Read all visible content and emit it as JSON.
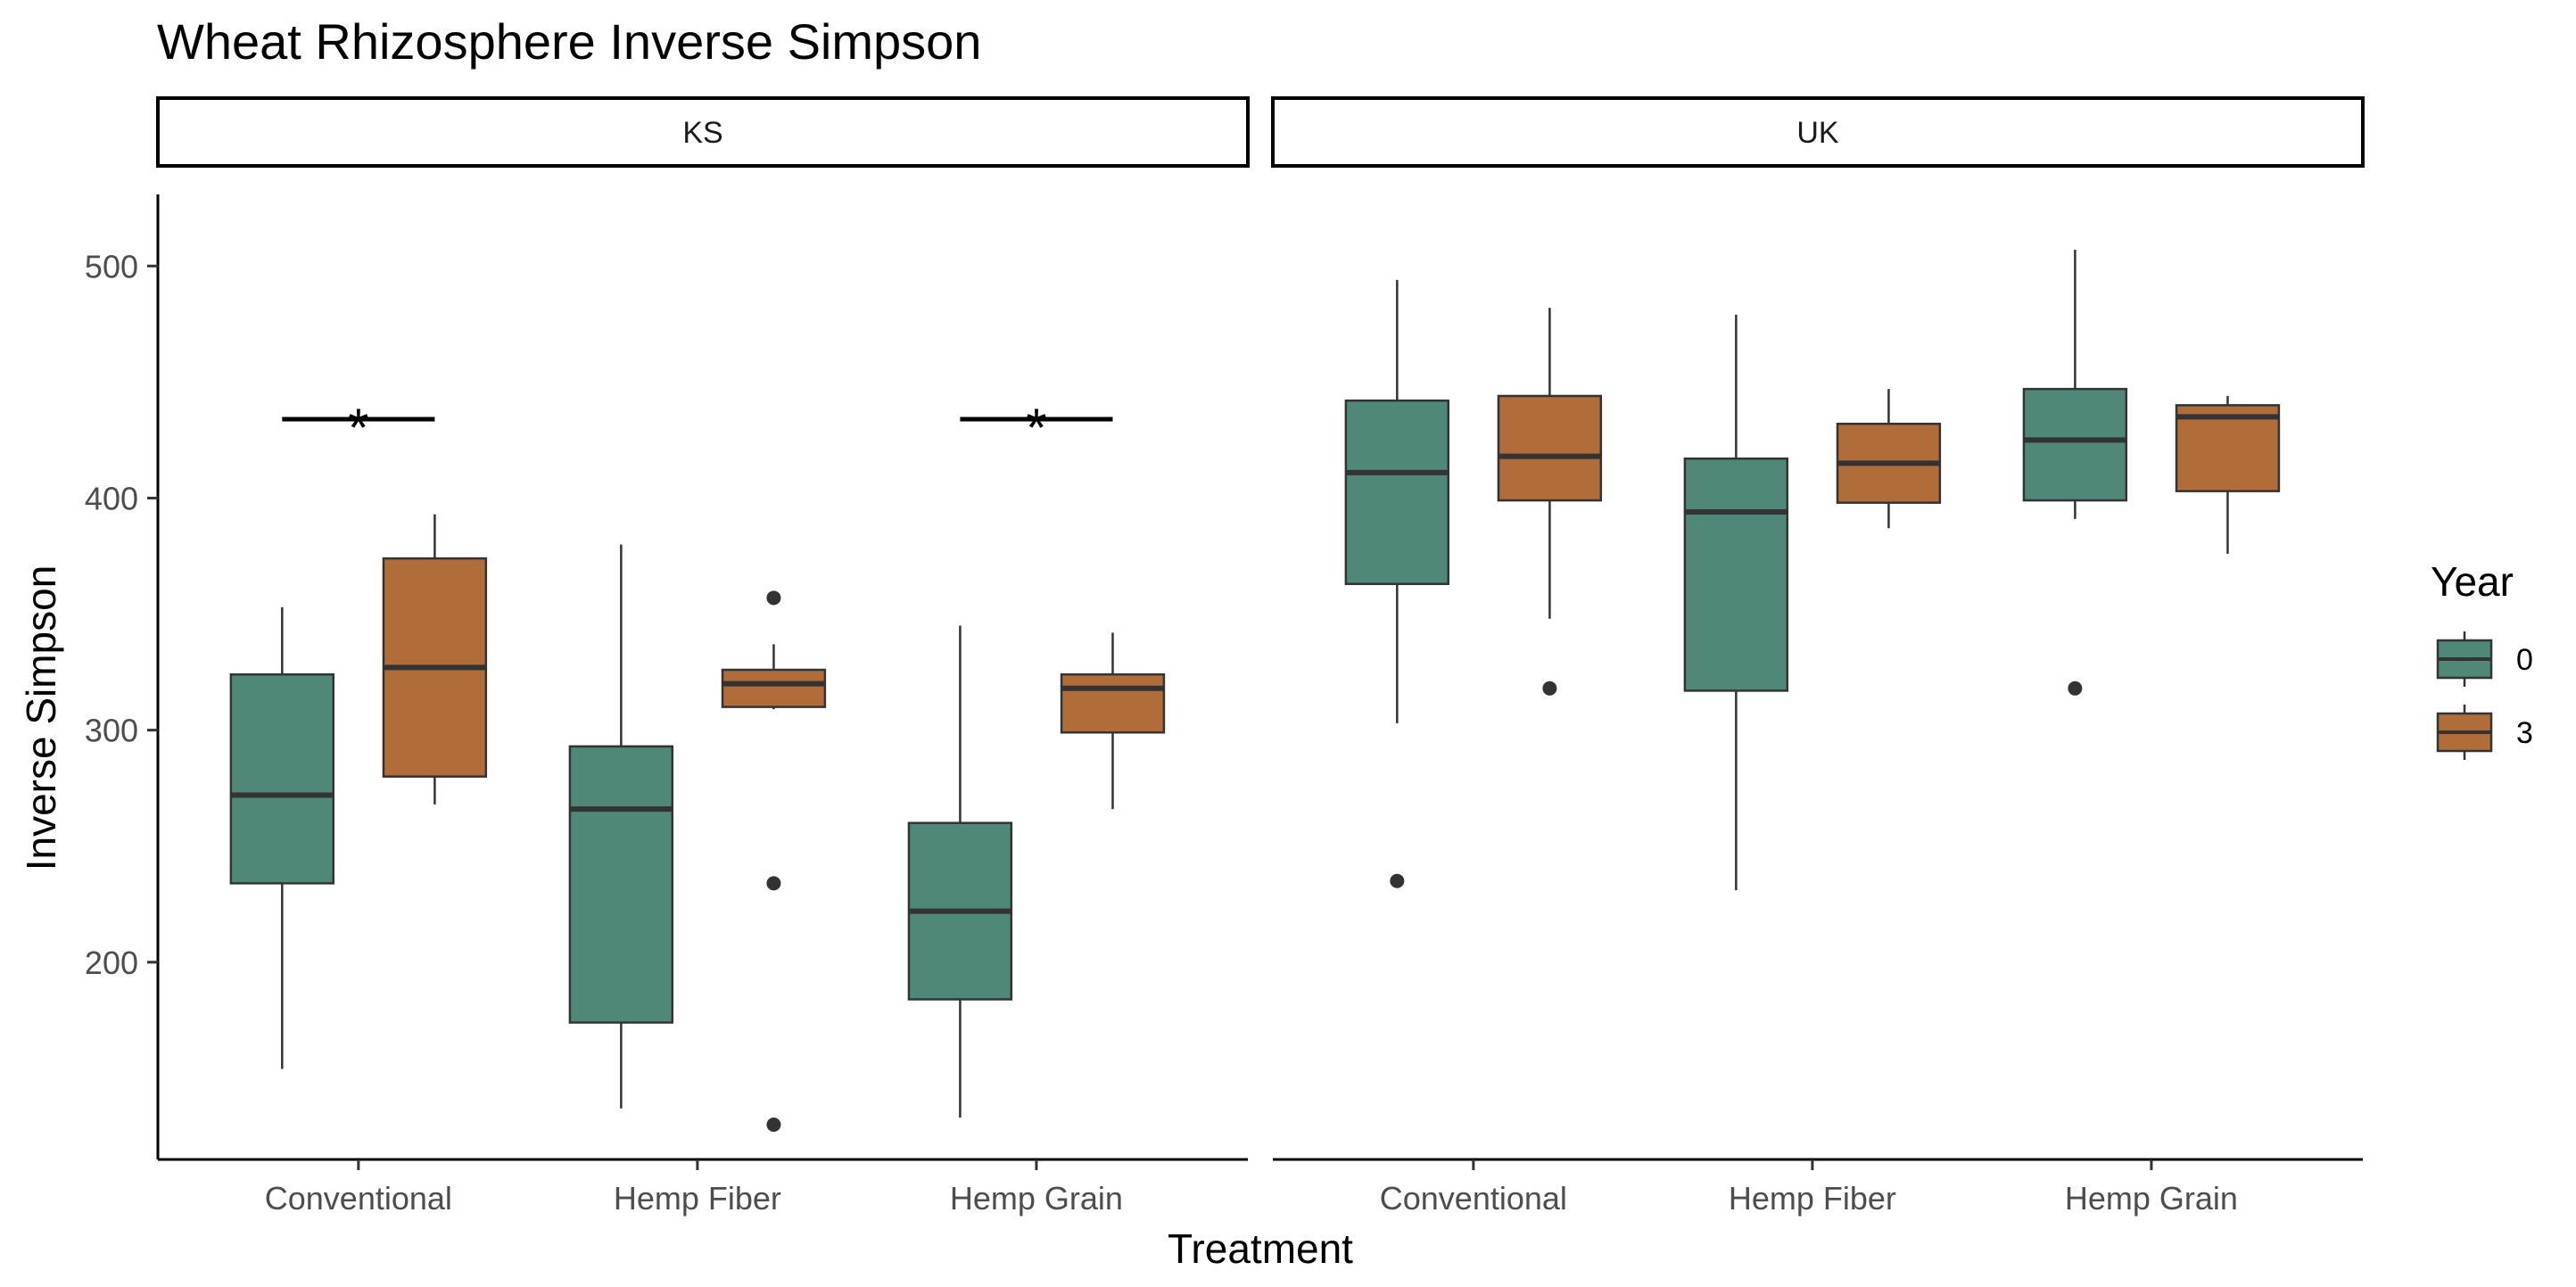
{
  "chart_data": {
    "type": "boxplot",
    "title": "Wheat Rhizosphere Inverse Simpson",
    "xlabel": "Treatment",
    "ylabel": "Inverse Simpson",
    "ylim": [
      115,
      527
    ],
    "yticks": [
      200,
      300,
      400,
      500
    ],
    "categories": [
      "Conventional",
      "Hemp Fiber",
      "Hemp Grain"
    ],
    "legend": {
      "title": "Year",
      "position": "right",
      "entries": [
        "0",
        "3"
      ]
    },
    "colors": {
      "0": "#4f8878",
      "3": "#b06c39"
    },
    "grid": false,
    "facets": [
      {
        "label": "KS",
        "boxes": [
          {
            "category": "Conventional",
            "year": "0",
            "min": 154,
            "q1": 234,
            "median": 272,
            "q3": 324,
            "max": 353,
            "outliers": []
          },
          {
            "category": "Conventional",
            "year": "3",
            "min": 268,
            "q1": 280,
            "median": 327,
            "q3": 374,
            "max": 393,
            "outliers": []
          },
          {
            "category": "Hemp Fiber",
            "year": "0",
            "min": 137,
            "q1": 174,
            "median": 266,
            "q3": 293,
            "max": 380,
            "outliers": []
          },
          {
            "category": "Hemp Fiber",
            "year": "3",
            "min": 309,
            "q1": 310,
            "median": 320,
            "q3": 326,
            "max": 337,
            "outliers": [
              357,
              234,
              130
            ]
          },
          {
            "category": "Hemp Grain",
            "year": "0",
            "min": 133,
            "q1": 184,
            "median": 222,
            "q3": 260,
            "max": 345,
            "outliers": []
          },
          {
            "category": "Hemp Grain",
            "year": "3",
            "min": 266,
            "q1": 299,
            "median": 318,
            "q3": 324,
            "max": 342,
            "outliers": []
          }
        ],
        "annotations": [
          {
            "category": "Conventional",
            "y": 434,
            "text": "*"
          },
          {
            "category": "Hemp Grain",
            "y": 434,
            "text": "*"
          }
        ]
      },
      {
        "label": "UK",
        "boxes": [
          {
            "category": "Conventional",
            "year": "0",
            "min": 303,
            "q1": 363,
            "median": 411,
            "q3": 442,
            "max": 494,
            "outliers": [
              235
            ]
          },
          {
            "category": "Conventional",
            "year": "3",
            "min": 348,
            "q1": 399,
            "median": 418,
            "q3": 444,
            "max": 482,
            "outliers": [
              318
            ]
          },
          {
            "category": "Hemp Fiber",
            "year": "0",
            "min": 231,
            "q1": 317,
            "median": 394,
            "q3": 417,
            "max": 479,
            "outliers": []
          },
          {
            "category": "Hemp Fiber",
            "year": "3",
            "min": 387,
            "q1": 398,
            "median": 415,
            "q3": 432,
            "max": 447,
            "outliers": []
          },
          {
            "category": "Hemp Grain",
            "year": "0",
            "min": 391,
            "q1": 399,
            "median": 425,
            "q3": 447,
            "max": 507,
            "outliers": [
              318
            ]
          },
          {
            "category": "Hemp Grain",
            "year": "3",
            "min": 376,
            "q1": 403,
            "median": 435,
            "q3": 440,
            "max": 444,
            "outliers": []
          }
        ],
        "annotations": []
      }
    ]
  }
}
